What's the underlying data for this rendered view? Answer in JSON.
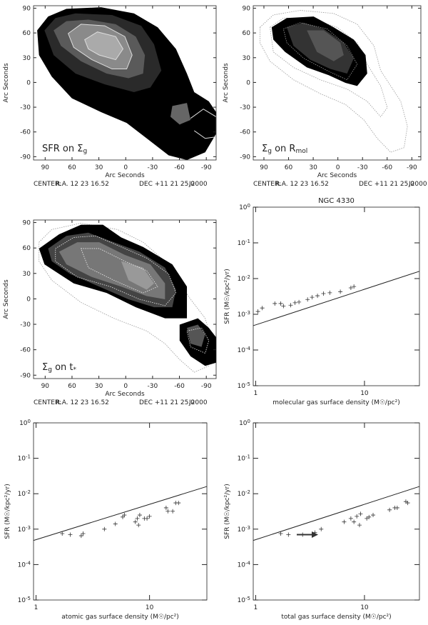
{
  "chart_data": [
    {
      "type": "map",
      "label_parts": [
        {
          "text": "SFR on Σ"
        },
        {
          "text": "g",
          "shift": "sub"
        }
      ],
      "xlabel": "Arc Seconds",
      "ylabel": "Arc Seconds",
      "xlim": [
        103,
        -101
      ],
      "ylim": [
        -94,
        93
      ],
      "xticks": [
        90,
        60,
        30,
        0,
        -30,
        -60,
        -90
      ],
      "yticks": [
        -90,
        -60,
        -30,
        0,
        30,
        60,
        90
      ],
      "footer": [
        "CENTER:",
        "R.A. 12 23 16.52",
        "DEC +11 21 25.0",
        "J2000"
      ]
    },
    {
      "type": "map",
      "label_parts": [
        {
          "text": "Σ"
        },
        {
          "text": "g",
          "shift": "sub"
        },
        {
          "text": " on R"
        },
        {
          "text": "mol",
          "shift": "sub"
        }
      ],
      "xlabel": "Arc Seconds",
      "ylabel": "Arc Seconds",
      "xlim": [
        103,
        -101
      ],
      "ylim": [
        -94,
        93
      ],
      "xticks": [
        90,
        60,
        30,
        0,
        -30,
        -60,
        -90
      ],
      "yticks": [
        -90,
        -60,
        -30,
        0,
        30,
        60,
        90
      ],
      "footer": [
        "CENTER:",
        "R.A. 12 23 16.52",
        "DEC +11 21 25.0",
        "J2000"
      ]
    },
    {
      "type": "map",
      "label_parts": [
        {
          "text": "Σ"
        },
        {
          "text": "g",
          "shift": "sub"
        },
        {
          "text": " on t"
        },
        {
          "text": "*",
          "shift": "sub"
        }
      ],
      "xlabel": "Arc Seconds",
      "ylabel": "Arc Seconds",
      "xlim": [
        103,
        -101
      ],
      "ylim": [
        -94,
        93
      ],
      "xticks": [
        90,
        60,
        30,
        0,
        -30,
        -60,
        -90
      ],
      "yticks": [
        -90,
        -60,
        -30,
        0,
        30,
        60,
        90
      ],
      "footer": [
        "CENTER:",
        "R.A. 12 23 16.52",
        "DEC +11 21 25.0",
        "J2000"
      ]
    },
    {
      "type": "scatter",
      "title": "NGC 4330",
      "xlabel": "molecular gas surface density (M☉/pc²)",
      "ylabel": "SFR (M☉/kpc²/yr)",
      "log_x": true,
      "log_y": true,
      "xlim": [
        0.95,
        32
      ],
      "ylim": [
        1e-05,
        1
      ],
      "xticks": [
        1,
        10
      ],
      "yticks": [
        {
          "value": 1e-05,
          "label": "10",
          "sup": "-5"
        },
        {
          "value": 0.0001,
          "label": "10",
          "sup": "-4"
        },
        {
          "value": 0.001,
          "label": "10",
          "sup": "-3"
        },
        {
          "value": 0.01,
          "label": "10",
          "sup": "-2"
        },
        {
          "value": 0.1,
          "label": "10",
          "sup": "-1"
        },
        {
          "value": 1,
          "label": "10",
          "sup": "0"
        }
      ],
      "line": {
        "x": [
          0.95,
          32
        ],
        "values": [
          0.00048,
          0.016
        ]
      },
      "points": {
        "x": [
          1.05,
          1.15,
          1.5,
          1.7,
          1.8,
          2.1,
          2.3,
          2.5,
          3,
          3.3,
          3.7,
          4.2,
          4.8,
          6,
          7.5,
          8
        ],
        "values": [
          0.0012,
          0.0015,
          0.002,
          0.002,
          0.0017,
          0.0018,
          0.0021,
          0.0022,
          0.0026,
          0.003,
          0.0033,
          0.0038,
          0.004,
          0.0043,
          0.0055,
          0.006
        ]
      }
    },
    {
      "type": "scatter",
      "xlabel": "atomic gas surface density (M☉/pc²)",
      "ylabel": "SFR (M☉/kpc²/yr)",
      "log_x": true,
      "log_y": true,
      "xlim": [
        0.95,
        32
      ],
      "ylim": [
        1e-05,
        1
      ],
      "xticks": [
        1,
        10
      ],
      "yticks": [
        {
          "value": 1e-05,
          "label": "10",
          "sup": "-5"
        },
        {
          "value": 0.0001,
          "label": "10",
          "sup": "-4"
        },
        {
          "value": 0.001,
          "label": "10",
          "sup": "-3"
        },
        {
          "value": 0.01,
          "label": "10",
          "sup": "-2"
        },
        {
          "value": 0.1,
          "label": "10",
          "sup": "-1"
        },
        {
          "value": 1,
          "label": "10",
          "sup": "0"
        }
      ],
      "line": {
        "x": [
          0.95,
          32
        ],
        "values": [
          0.00048,
          0.016
        ]
      },
      "points": {
        "x": [
          1.7,
          2,
          2.5,
          2.6,
          4,
          5,
          5.8,
          6,
          7.5,
          7.8,
          8,
          8.2,
          9,
          9.5,
          10,
          14,
          14.5,
          16,
          17,
          18
        ],
        "values": [
          0.00075,
          0.0007,
          0.00065,
          0.00075,
          0.001,
          0.0014,
          0.0022,
          0.0025,
          0.0016,
          0.002,
          0.0013,
          0.0025,
          0.002,
          0.002,
          0.0023,
          0.004,
          0.0032,
          0.0032,
          0.0055,
          0.0055
        ]
      }
    },
    {
      "type": "scatter",
      "xlabel": "total gas surface density (M☉/pc²)",
      "ylabel": "SFR (M☉/kpc²/yr)",
      "log_x": true,
      "log_y": true,
      "xlim": [
        0.95,
        32
      ],
      "ylim": [
        1e-05,
        1
      ],
      "xticks": [
        1,
        10
      ],
      "yticks": [
        {
          "value": 1e-05,
          "label": "10",
          "sup": "-5"
        },
        {
          "value": 0.0001,
          "label": "10",
          "sup": "-4"
        },
        {
          "value": 0.001,
          "label": "10",
          "sup": "-3"
        },
        {
          "value": 0.01,
          "label": "10",
          "sup": "-2"
        },
        {
          "value": 0.1,
          "label": "10",
          "sup": "-1"
        },
        {
          "value": 1,
          "label": "10",
          "sup": "0"
        }
      ],
      "line": {
        "x": [
          0.95,
          32
        ],
        "values": [
          0.00048,
          0.016
        ]
      },
      "points": {
        "x": [
          1.7,
          2,
          2.7,
          3.5,
          4,
          6.5,
          7.5,
          8,
          8.5,
          9,
          9.2,
          10.5,
          11,
          12,
          17,
          19,
          20,
          24,
          25
        ],
        "values": [
          0.00075,
          0.0007,
          0.0007,
          0.0008,
          0.001,
          0.0016,
          0.002,
          0.0016,
          0.0023,
          0.0013,
          0.0027,
          0.002,
          0.0022,
          0.0025,
          0.0035,
          0.004,
          0.004,
          0.006,
          0.0055
        ]
      }
    }
  ]
}
